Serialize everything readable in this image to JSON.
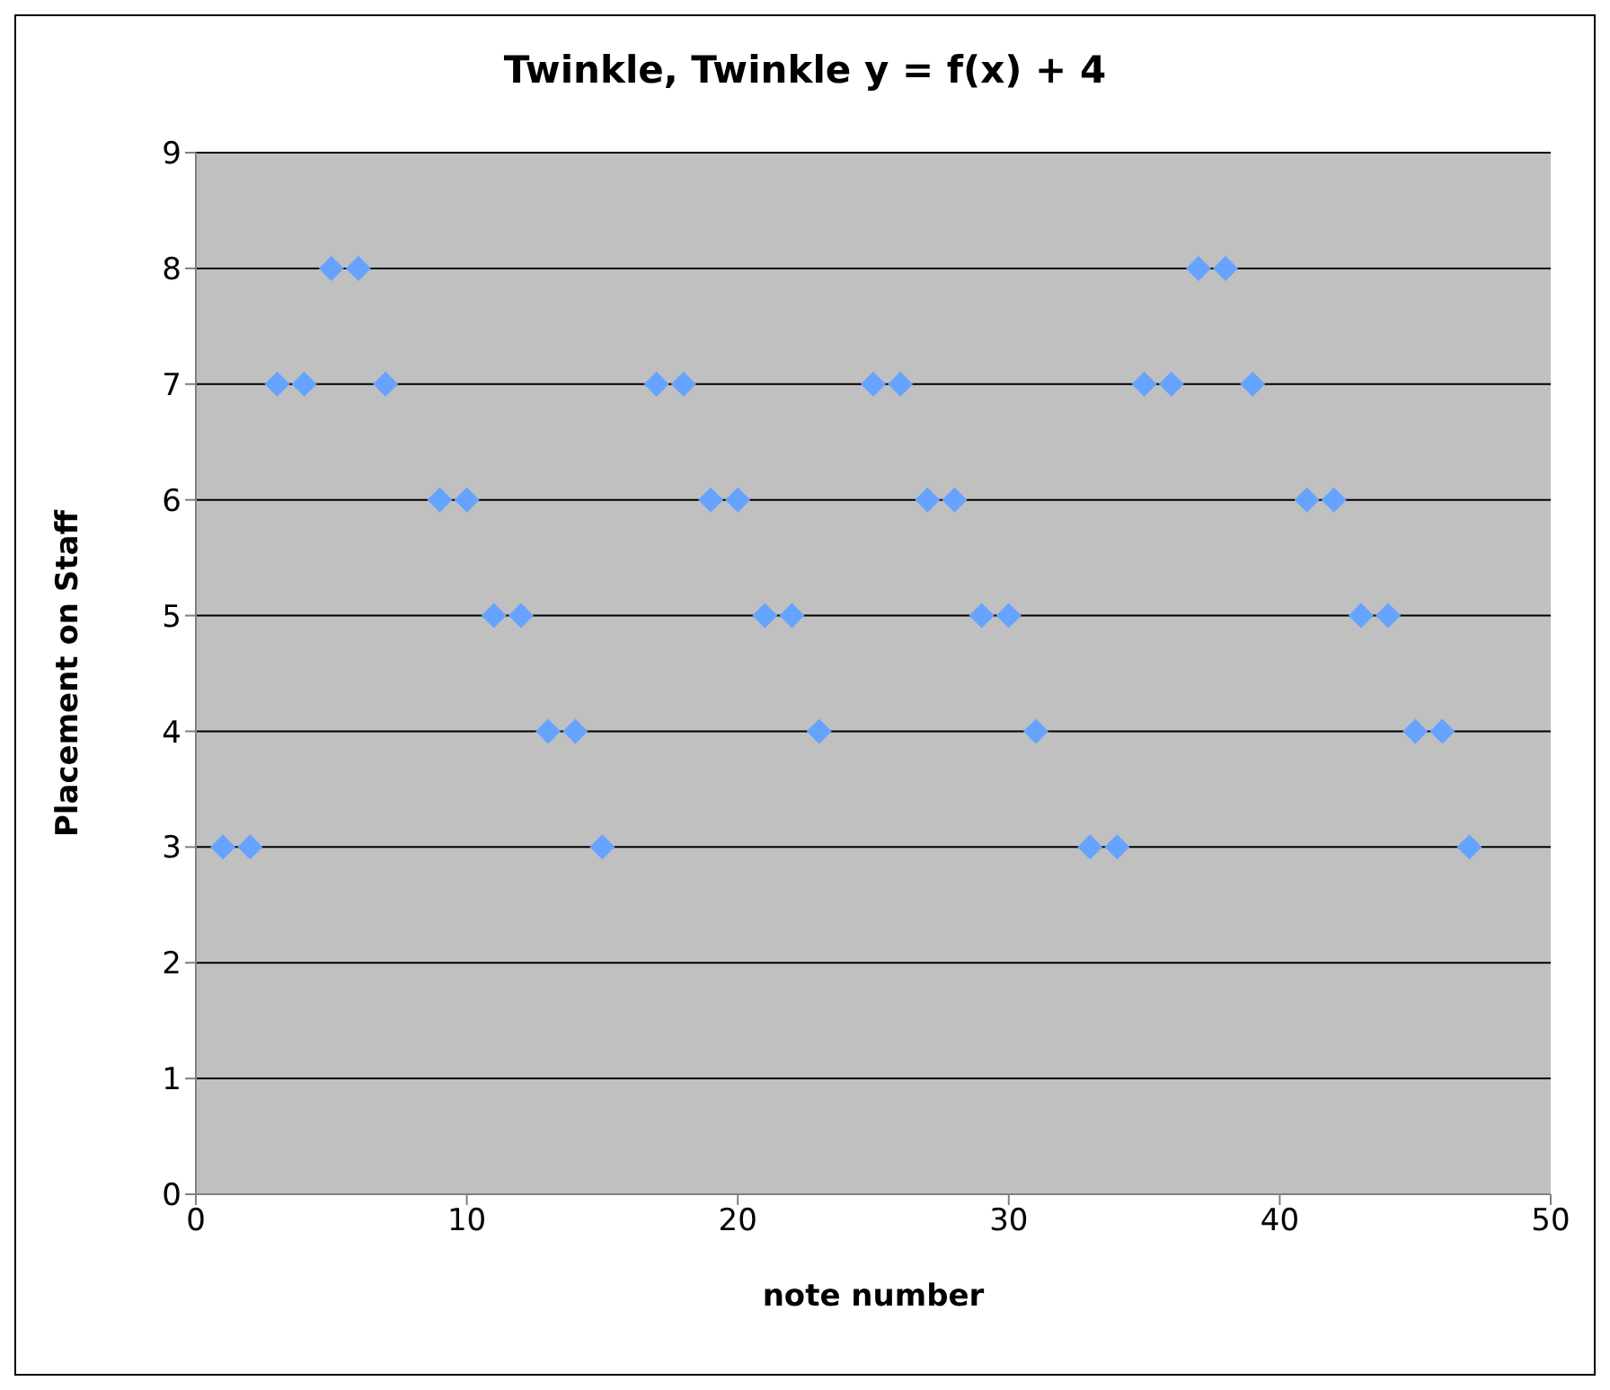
{
  "chart_data": {
    "type": "scatter",
    "title": "Twinkle, Twinkle y = f(x) + 4",
    "xlabel": "note number",
    "ylabel": "Placement on Staff",
    "x": [
      1,
      2,
      3,
      4,
      5,
      6,
      7,
      9,
      10,
      11,
      12,
      13,
      14,
      15,
      17,
      18,
      19,
      20,
      21,
      22,
      23,
      25,
      26,
      27,
      28,
      29,
      30,
      31,
      33,
      34,
      35,
      36,
      37,
      38,
      39,
      41,
      42,
      43,
      44,
      45,
      46,
      47
    ],
    "series": [
      {
        "color": "#66a3ff",
        "values": [
          3,
          3,
          7,
          7,
          8,
          8,
          7,
          6,
          6,
          5,
          5,
          4,
          4,
          3,
          7,
          7,
          6,
          6,
          5,
          5,
          4,
          7,
          7,
          6,
          6,
          5,
          5,
          4,
          3,
          3,
          7,
          7,
          8,
          8,
          7,
          6,
          6,
          5,
          5,
          4,
          4,
          3
        ]
      }
    ],
    "xlim": [
      0,
      50
    ],
    "xticks": [
      0,
      10,
      20,
      30,
      40,
      50
    ],
    "ylim": [
      0,
      9
    ],
    "yticks": [
      0,
      1,
      2,
      3,
      4,
      5,
      6,
      7,
      8,
      9
    ],
    "grid": "y",
    "marker": "diamond"
  }
}
